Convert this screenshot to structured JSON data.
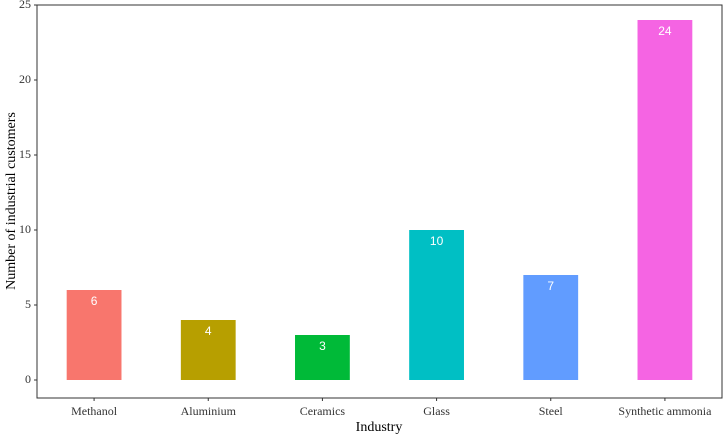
{
  "chart_data": {
    "type": "bar",
    "x_label": "Industry",
    "y_label": "Number of industrial customers",
    "categories": [
      "Methanol",
      "Aluminium",
      "Ceramics",
      "Glass",
      "Steel",
      "Synthetic ammonia"
    ],
    "values": [
      6,
      4,
      3,
      10,
      7,
      24
    ],
    "colors": [
      "#f8766d",
      "#b79f00",
      "#00ba38",
      "#00bfc4",
      "#619cff",
      "#f564e3"
    ],
    "ylim": [
      -1.2,
      25
    ],
    "yticks": [
      0,
      5,
      10,
      15,
      20,
      25
    ],
    "grid": false
  }
}
